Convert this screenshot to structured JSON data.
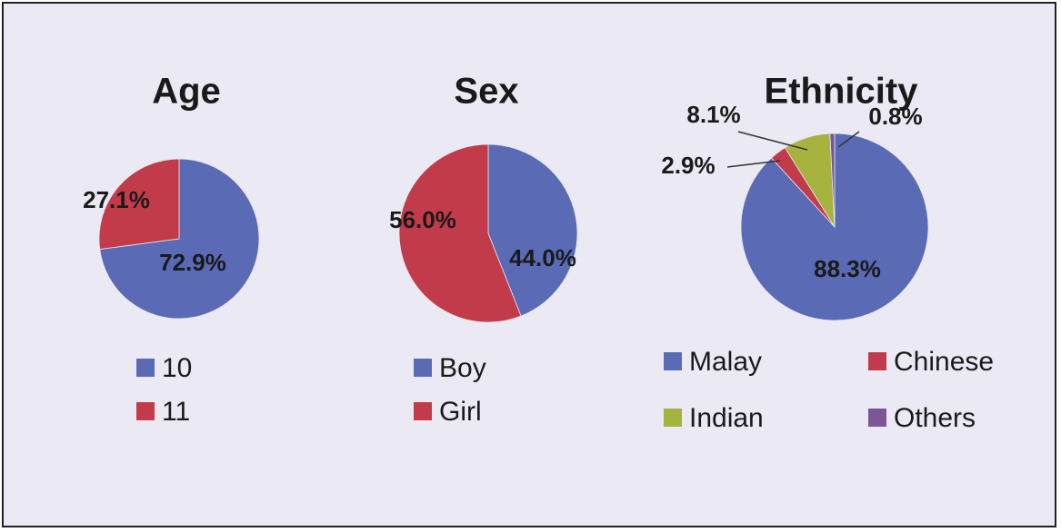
{
  "chart_data": [
    {
      "type": "pie",
      "title": "Age",
      "categories": [
        "10",
        "11"
      ],
      "values": [
        72.9,
        27.1
      ],
      "value_labels": [
        "72.9%",
        "27.1%"
      ],
      "colors": [
        "#5a6ab5",
        "#c23b4b"
      ]
    },
    {
      "type": "pie",
      "title": "Sex",
      "categories": [
        "Boy",
        "Girl"
      ],
      "values": [
        44.0,
        56.0
      ],
      "value_labels": [
        "44.0%",
        "56.0%"
      ],
      "colors": [
        "#5a6ab5",
        "#c23b4b"
      ]
    },
    {
      "type": "pie",
      "title": "Ethnicity",
      "categories": [
        "Malay",
        "Chinese",
        "Indian",
        "Others"
      ],
      "values": [
        88.3,
        2.9,
        8.1,
        0.8
      ],
      "value_labels": [
        "88.3%",
        "2.9%",
        "8.1%",
        "0.8%"
      ],
      "colors": [
        "#5a6ab5",
        "#c23b4b",
        "#a6b33f",
        "#7c5597"
      ]
    }
  ]
}
